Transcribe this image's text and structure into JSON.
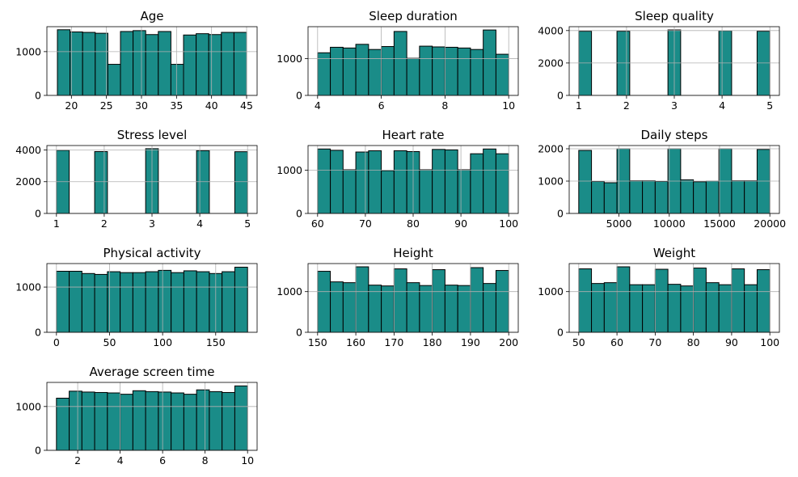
{
  "figure": {
    "bar_color": "#1a8c88",
    "edge_color": "#000000",
    "grid_color": "#b0b0b0"
  },
  "chart_data": [
    {
      "type": "bar",
      "title": "Age",
      "bins": [
        [
          18,
          19.8
        ],
        [
          19.8,
          21.6
        ],
        [
          21.6,
          23.4
        ],
        [
          23.4,
          25.2
        ],
        [
          25.2,
          27
        ],
        [
          27,
          28.8
        ],
        [
          28.8,
          30.6
        ],
        [
          30.6,
          32.4
        ],
        [
          32.4,
          34.2
        ],
        [
          34.2,
          36
        ],
        [
          36,
          37.8
        ],
        [
          37.8,
          39.6
        ],
        [
          39.6,
          41.4
        ],
        [
          41.4,
          43.2
        ],
        [
          43.2,
          45
        ]
      ],
      "values": [
        1500,
        1450,
        1440,
        1420,
        710,
        1460,
        1480,
        1390,
        1460,
        710,
        1380,
        1410,
        1390,
        1440,
        1440
      ],
      "xlim": [
        16.5,
        46.5
      ],
      "ylim": [
        0,
        1570
      ],
      "xticks": [
        20,
        25,
        30,
        35,
        40,
        45
      ],
      "xticklabels": [
        "20",
        "25",
        "30",
        "35",
        "40",
        "45"
      ],
      "yticks": [
        0,
        1000
      ],
      "yticklabels": [
        "0",
        "1000"
      ],
      "grid": true
    },
    {
      "type": "bar",
      "title": "Sleep duration",
      "bins": [
        [
          4,
          4.4
        ],
        [
          4.4,
          4.8
        ],
        [
          4.8,
          5.2
        ],
        [
          5.2,
          5.6
        ],
        [
          5.6,
          6
        ],
        [
          6,
          6.4
        ],
        [
          6.4,
          6.8
        ],
        [
          6.8,
          7.2
        ],
        [
          7.2,
          7.6
        ],
        [
          7.6,
          8
        ],
        [
          8,
          8.4
        ],
        [
          8.4,
          8.8
        ],
        [
          8.8,
          9.2
        ],
        [
          9.2,
          9.6
        ],
        [
          9.6,
          10
        ]
      ],
      "values": [
        1160,
        1310,
        1290,
        1390,
        1250,
        1330,
        1740,
        1010,
        1340,
        1320,
        1310,
        1290,
        1250,
        1780,
        1120
      ],
      "xlim": [
        3.7,
        10.3
      ],
      "ylim": [
        0,
        1870
      ],
      "xticks": [
        4,
        6,
        8,
        10
      ],
      "xticklabels": [
        "4",
        "6",
        "8",
        "10"
      ],
      "yticks": [
        0,
        1000
      ],
      "yticklabels": [
        "0",
        "1000"
      ],
      "grid": true
    },
    {
      "type": "bar",
      "title": "Sleep quality",
      "bins": [
        [
          1,
          1.267
        ],
        [
          1.267,
          1.533
        ],
        [
          1.533,
          1.8
        ],
        [
          1.8,
          2.067
        ],
        [
          2.067,
          2.333
        ],
        [
          2.333,
          2.6
        ],
        [
          2.6,
          2.867
        ],
        [
          2.867,
          3.133
        ],
        [
          3.133,
          3.4
        ],
        [
          3.4,
          3.667
        ],
        [
          3.667,
          3.933
        ],
        [
          3.933,
          4.2
        ],
        [
          4.2,
          4.467
        ],
        [
          4.467,
          4.733
        ],
        [
          4.733,
          5
        ]
      ],
      "values": [
        3960,
        0,
        0,
        3960,
        0,
        0,
        0,
        4040,
        0,
        0,
        0,
        3990,
        0,
        0,
        3960
      ],
      "xlim": [
        0.8,
        5.2
      ],
      "ylim": [
        0,
        4240
      ],
      "xticks": [
        1,
        2,
        3,
        4,
        5
      ],
      "xticklabels": [
        "1",
        "2",
        "3",
        "4",
        "5"
      ],
      "yticks": [
        0,
        2000,
        4000
      ],
      "yticklabels": [
        "0",
        "2000",
        "4000"
      ],
      "grid": true
    },
    {
      "type": "bar",
      "title": "Stress level",
      "bins": [
        [
          1,
          1.267
        ],
        [
          1.267,
          1.533
        ],
        [
          1.533,
          1.8
        ],
        [
          1.8,
          2.067
        ],
        [
          2.067,
          2.333
        ],
        [
          2.333,
          2.6
        ],
        [
          2.6,
          2.867
        ],
        [
          2.867,
          3.133
        ],
        [
          3.133,
          3.4
        ],
        [
          3.4,
          3.667
        ],
        [
          3.667,
          3.933
        ],
        [
          3.933,
          4.2
        ],
        [
          4.2,
          4.467
        ],
        [
          4.467,
          4.733
        ],
        [
          4.733,
          5
        ]
      ],
      "values": [
        3980,
        0,
        0,
        3900,
        0,
        0,
        0,
        4080,
        0,
        0,
        0,
        3960,
        0,
        0,
        3890
      ],
      "xlim": [
        0.8,
        5.2
      ],
      "ylim": [
        0,
        4280
      ],
      "xticks": [
        1,
        2,
        3,
        4,
        5
      ],
      "xticklabels": [
        "1",
        "2",
        "3",
        "4",
        "5"
      ],
      "yticks": [
        0,
        2000,
        4000
      ],
      "yticklabels": [
        "0",
        "2000",
        "4000"
      ],
      "grid": true
    },
    {
      "type": "bar",
      "title": "Heart rate",
      "bins": [
        [
          60,
          62.67
        ],
        [
          62.67,
          65.33
        ],
        [
          65.33,
          68
        ],
        [
          68,
          70.67
        ],
        [
          70.67,
          73.33
        ],
        [
          73.33,
          76
        ],
        [
          76,
          78.67
        ],
        [
          78.67,
          81.33
        ],
        [
          81.33,
          84
        ],
        [
          84,
          86.67
        ],
        [
          86.67,
          89.33
        ],
        [
          89.33,
          92
        ],
        [
          92,
          94.67
        ],
        [
          94.67,
          97.33
        ],
        [
          97.33,
          100
        ]
      ],
      "values": [
        1490,
        1460,
        1010,
        1420,
        1450,
        990,
        1450,
        1430,
        1010,
        1480,
        1470,
        1010,
        1380,
        1490,
        1380
      ],
      "xlim": [
        58,
        102
      ],
      "ylim": [
        0,
        1570
      ],
      "xticks": [
        60,
        70,
        80,
        90,
        100
      ],
      "xticklabels": [
        "60",
        "70",
        "80",
        "90",
        "100"
      ],
      "yticks": [
        0,
        1000
      ],
      "yticklabels": [
        "0",
        "1000"
      ],
      "grid": true
    },
    {
      "type": "bar",
      "title": "Daily steps",
      "bins": [
        [
          1000,
          2267
        ],
        [
          2267,
          3533
        ],
        [
          3533,
          4800
        ],
        [
          4800,
          6067
        ],
        [
          6067,
          7333
        ],
        [
          7333,
          8600
        ],
        [
          8600,
          9867
        ],
        [
          9867,
          11133
        ],
        [
          11133,
          12400
        ],
        [
          12400,
          13667
        ],
        [
          13667,
          14933
        ],
        [
          14933,
          16200
        ],
        [
          16200,
          17467
        ],
        [
          17467,
          18733
        ],
        [
          18733,
          20000
        ]
      ],
      "values": [
        1950,
        990,
        950,
        2000,
        1010,
        1010,
        990,
        2000,
        1040,
        980,
        1000,
        2000,
        1010,
        1010,
        1980
      ],
      "xlim": [
        50,
        20950
      ],
      "ylim": [
        0,
        2100
      ],
      "xticks": [
        5000,
        10000,
        15000,
        20000
      ],
      "xticklabels": [
        "5000",
        "10000",
        "15000",
        "20000"
      ],
      "yticks": [
        0,
        1000,
        2000
      ],
      "yticklabels": [
        "0",
        "1000",
        "2000"
      ],
      "grid": true
    },
    {
      "type": "bar",
      "title": "Physical activity",
      "bins": [
        [
          0,
          12
        ],
        [
          12,
          24
        ],
        [
          24,
          36
        ],
        [
          36,
          48
        ],
        [
          48,
          60
        ],
        [
          60,
          72
        ],
        [
          72,
          84
        ],
        [
          84,
          96
        ],
        [
          96,
          108
        ],
        [
          108,
          120
        ],
        [
          120,
          132
        ],
        [
          132,
          144
        ],
        [
          144,
          156
        ],
        [
          156,
          168
        ],
        [
          168,
          180
        ]
      ],
      "values": [
        1350,
        1350,
        1300,
        1280,
        1340,
        1320,
        1320,
        1340,
        1370,
        1320,
        1360,
        1340,
        1300,
        1340,
        1440
      ],
      "xlim": [
        -9,
        189
      ],
      "ylim": [
        0,
        1520
      ],
      "xticks": [
        0,
        50,
        100,
        150
      ],
      "xticklabels": [
        "0",
        "50",
        "100",
        "150"
      ],
      "yticks": [
        0,
        1000
      ],
      "yticklabels": [
        "0",
        "1000"
      ],
      "grid": true
    },
    {
      "type": "bar",
      "title": "Height",
      "bins": [
        [
          150,
          153.33
        ],
        [
          153.33,
          156.67
        ],
        [
          156.67,
          160
        ],
        [
          160,
          163.33
        ],
        [
          163.33,
          166.67
        ],
        [
          166.67,
          170
        ],
        [
          170,
          173.33
        ],
        [
          173.33,
          176.67
        ],
        [
          176.67,
          180
        ],
        [
          180,
          183.33
        ],
        [
          183.33,
          186.67
        ],
        [
          186.67,
          190
        ],
        [
          190,
          193.33
        ],
        [
          193.33,
          196.67
        ],
        [
          196.67,
          200
        ]
      ],
      "values": [
        1500,
        1240,
        1220,
        1610,
        1160,
        1140,
        1560,
        1220,
        1150,
        1540,
        1160,
        1150,
        1590,
        1200,
        1520
      ],
      "xlim": [
        147.5,
        202.5
      ],
      "ylim": [
        0,
        1690
      ],
      "xticks": [
        150,
        160,
        170,
        180,
        190,
        200
      ],
      "xticklabels": [
        "150",
        "160",
        "170",
        "180",
        "190",
        "200"
      ],
      "yticks": [
        0,
        1000
      ],
      "yticklabels": [
        "0",
        "1000"
      ],
      "grid": true
    },
    {
      "type": "bar",
      "title": "Weight",
      "bins": [
        [
          50,
          53.33
        ],
        [
          53.33,
          56.67
        ],
        [
          56.67,
          60
        ],
        [
          60,
          63.33
        ],
        [
          63.33,
          66.67
        ],
        [
          66.67,
          70
        ],
        [
          70,
          73.33
        ],
        [
          73.33,
          76.67
        ],
        [
          76.67,
          80
        ],
        [
          80,
          83.33
        ],
        [
          83.33,
          86.67
        ],
        [
          86.67,
          90
        ],
        [
          90,
          93.33
        ],
        [
          93.33,
          96.67
        ],
        [
          96.67,
          100
        ]
      ],
      "values": [
        1560,
        1200,
        1220,
        1610,
        1170,
        1170,
        1550,
        1180,
        1140,
        1580,
        1220,
        1170,
        1560,
        1170,
        1540
      ],
      "xlim": [
        47.5,
        102.5
      ],
      "ylim": [
        0,
        1690
      ],
      "xticks": [
        50,
        60,
        70,
        80,
        90,
        100
      ],
      "xticklabels": [
        "50",
        "60",
        "70",
        "80",
        "90",
        "100"
      ],
      "yticks": [
        0,
        1000
      ],
      "yticklabels": [
        "0",
        "1000"
      ],
      "grid": true
    },
    {
      "type": "bar",
      "title": "Average screen time",
      "bins": [
        [
          1,
          1.6
        ],
        [
          1.6,
          2.2
        ],
        [
          2.2,
          2.8
        ],
        [
          2.8,
          3.4
        ],
        [
          3.4,
          4
        ],
        [
          4,
          4.6
        ],
        [
          4.6,
          5.2
        ],
        [
          5.2,
          5.8
        ],
        [
          5.8,
          6.4
        ],
        [
          6.4,
          7
        ],
        [
          7,
          7.6
        ],
        [
          7.6,
          8.2
        ],
        [
          8.2,
          8.8
        ],
        [
          8.8,
          9.4
        ],
        [
          9.4,
          10
        ]
      ],
      "values": [
        1190,
        1350,
        1330,
        1320,
        1310,
        1280,
        1360,
        1340,
        1330,
        1310,
        1280,
        1380,
        1340,
        1320,
        1470
      ],
      "xlim": [
        0.55,
        10.45
      ],
      "ylim": [
        0,
        1550
      ],
      "xticks": [
        2,
        4,
        6,
        8,
        10
      ],
      "xticklabels": [
        "2",
        "4",
        "6",
        "8",
        "10"
      ],
      "yticks": [
        0,
        1000
      ],
      "yticklabels": [
        "0",
        "1000"
      ],
      "grid": true
    }
  ]
}
